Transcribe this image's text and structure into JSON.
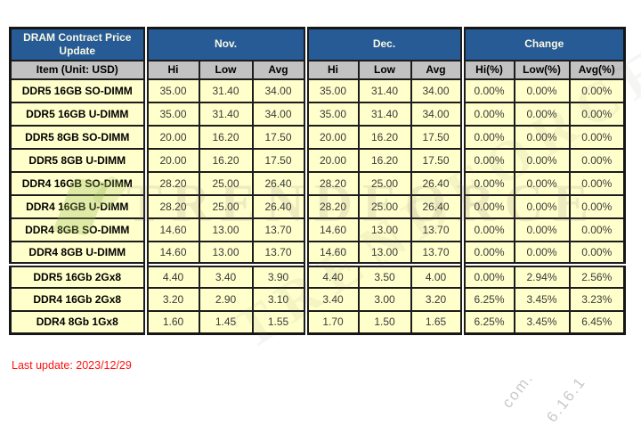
{
  "chart_data": {
    "type": "table",
    "title": "DRAM Contract Price Update",
    "item_header": "Item (Unit: USD)",
    "column_groups": [
      "Nov.",
      "Dec.",
      "Change"
    ],
    "price_sub_columns": [
      "Hi",
      "Low",
      "Avg"
    ],
    "change_sub_columns": [
      "Hi(%)",
      "Low(%)",
      "Avg(%)"
    ],
    "rows": [
      {
        "item": "DDR5 16GB SO-DIMM",
        "nov": [
          "35.00",
          "31.40",
          "34.00"
        ],
        "dec": [
          "35.00",
          "31.40",
          "34.00"
        ],
        "change": [
          "0.00%",
          "0.00%",
          "0.00%"
        ],
        "section_start": false
      },
      {
        "item": "DDR5 16GB U-DIMM",
        "nov": [
          "35.00",
          "31.40",
          "34.00"
        ],
        "dec": [
          "35.00",
          "31.40",
          "34.00"
        ],
        "change": [
          "0.00%",
          "0.00%",
          "0.00%"
        ],
        "section_start": false
      },
      {
        "item": "DDR5 8GB SO-DIMM",
        "nov": [
          "20.00",
          "16.20",
          "17.50"
        ],
        "dec": [
          "20.00",
          "16.20",
          "17.50"
        ],
        "change": [
          "0.00%",
          "0.00%",
          "0.00%"
        ],
        "section_start": false
      },
      {
        "item": "DDR5 8GB U-DIMM",
        "nov": [
          "20.00",
          "16.20",
          "17.50"
        ],
        "dec": [
          "20.00",
          "16.20",
          "17.50"
        ],
        "change": [
          "0.00%",
          "0.00%",
          "0.00%"
        ],
        "section_start": false
      },
      {
        "item": "DDR4 16GB SO-DIMM",
        "nov": [
          "28.20",
          "25.00",
          "26.40"
        ],
        "dec": [
          "28.20",
          "25.00",
          "26.40"
        ],
        "change": [
          "0.00%",
          "0.00%",
          "0.00%"
        ],
        "section_start": false
      },
      {
        "item": "DDR4 16GB U-DIMM",
        "nov": [
          "28.20",
          "25.00",
          "26.40"
        ],
        "dec": [
          "28.20",
          "25.00",
          "26.40"
        ],
        "change": [
          "0.00%",
          "0.00%",
          "0.00%"
        ],
        "section_start": false
      },
      {
        "item": "DDR4 8GB SO-DIMM",
        "nov": [
          "14.60",
          "13.00",
          "13.70"
        ],
        "dec": [
          "14.60",
          "13.00",
          "13.70"
        ],
        "change": [
          "0.00%",
          "0.00%",
          "0.00%"
        ],
        "section_start": false
      },
      {
        "item": "DDR4 8GB U-DIMM",
        "nov": [
          "14.60",
          "13.00",
          "13.70"
        ],
        "dec": [
          "14.60",
          "13.00",
          "13.70"
        ],
        "change": [
          "0.00%",
          "0.00%",
          "0.00%"
        ],
        "section_start": false
      },
      {
        "item": "DDR5 16Gb 2Gx8",
        "nov": [
          "4.40",
          "3.40",
          "3.90"
        ],
        "dec": [
          "4.40",
          "3.50",
          "4.00"
        ],
        "change": [
          "0.00%",
          "2.94%",
          "2.56%"
        ],
        "section_start": true
      },
      {
        "item": "DDR4 16Gb 2Gx8",
        "nov": [
          "3.20",
          "2.90",
          "3.10"
        ],
        "dec": [
          "3.40",
          "3.00",
          "3.20"
        ],
        "change": [
          "6.25%",
          "3.45%",
          "3.23%"
        ],
        "section_start": false
      },
      {
        "item": "DDR4 8Gb 1Gx8",
        "nov": [
          "1.60",
          "1.45",
          "1.55"
        ],
        "dec": [
          "1.70",
          "1.50",
          "1.65"
        ],
        "change": [
          "6.25%",
          "3.45%",
          "6.45%"
        ],
        "section_start": false
      }
    ]
  },
  "footer": {
    "last_update": "Last update: 2023/12/29"
  },
  "watermark": {
    "brand": "TRENDFORCE",
    "fragments": [
      "com.",
      "6.16.1"
    ]
  },
  "colors": {
    "header_blue": "#265b96",
    "header_gray": "#c2c2c2",
    "cell_yellow": "#ffffcc",
    "border_black": "#1c1c1c",
    "update_red": "#fe1111"
  }
}
